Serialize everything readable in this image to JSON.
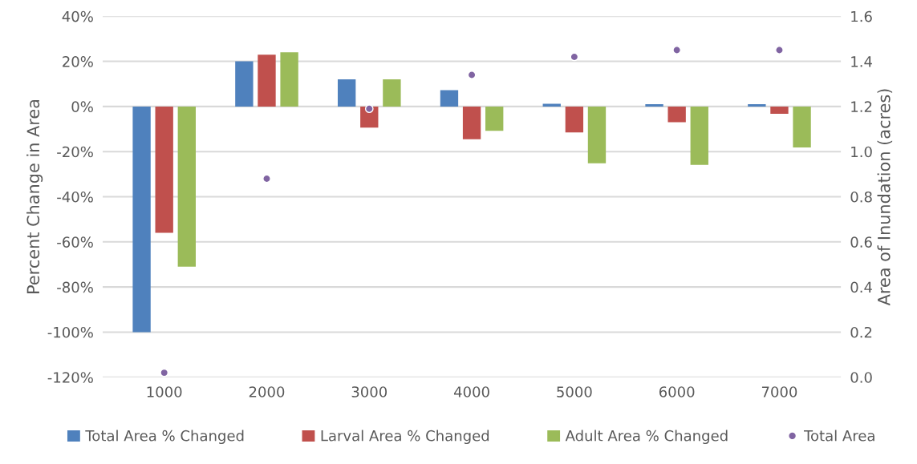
{
  "chart_data": {
    "type": "bar",
    "xlabel": null,
    "ylabel": "Percent Change in Area",
    "y2label": "Area of Inundation (acres)",
    "categories": [
      "1000",
      "2000",
      "3000",
      "4000",
      "5000",
      "6000",
      "7000"
    ],
    "series": [
      {
        "name": "Total Area % Changed",
        "color": "#4f81bd",
        "values": [
          -100,
          20,
          12,
          7.2,
          1.2,
          1,
          1
        ]
      },
      {
        "name": "Larval Area % Changed",
        "color": "#c0504d",
        "values": [
          -56,
          23,
          -9.4,
          -14.5,
          -11.5,
          -7,
          -3.2
        ]
      },
      {
        "name": "Adult Area % Changed",
        "color": "#9bbb59",
        "values": [
          -71,
          24,
          12,
          -10.8,
          -25.2,
          -25.9,
          -18.2
        ]
      },
      {
        "name": "Total Area",
        "type": "scatter",
        "axis": "y2",
        "color": "#8064a2",
        "marker": "circle",
        "values": [
          0.02,
          0.88,
          1.19,
          1.34,
          1.42,
          1.45,
          1.45
        ]
      }
    ],
    "ylim": [
      -120,
      40
    ],
    "yticks": [
      {
        "value": -120,
        "label": "-120%"
      },
      {
        "value": -100,
        "label": "-100%"
      },
      {
        "value": -80,
        "label": "-80%"
      },
      {
        "value": -60,
        "label": "-60%"
      },
      {
        "value": -40,
        "label": "-40%"
      },
      {
        "value": -20,
        "label": "-20%"
      },
      {
        "value": 0,
        "label": "0%"
      },
      {
        "value": 20,
        "label": "20%"
      },
      {
        "value": 40,
        "label": "40%"
      }
    ],
    "y2lim": [
      0,
      1.6
    ],
    "y2ticks": [
      {
        "value": 0,
        "label": "0.0"
      },
      {
        "value": 0.2,
        "label": "0.2"
      },
      {
        "value": 0.4,
        "label": "0.4"
      },
      {
        "value": 0.6,
        "label": "0.6"
      },
      {
        "value": 0.8,
        "label": "0.8"
      },
      {
        "value": 1.0,
        "label": "1.0"
      },
      {
        "value": 1.2,
        "label": "1.2"
      },
      {
        "value": 1.4,
        "label": "1.4"
      },
      {
        "value": 1.6,
        "label": "1.6"
      }
    ],
    "grid": "y",
    "legend": "bottom"
  }
}
